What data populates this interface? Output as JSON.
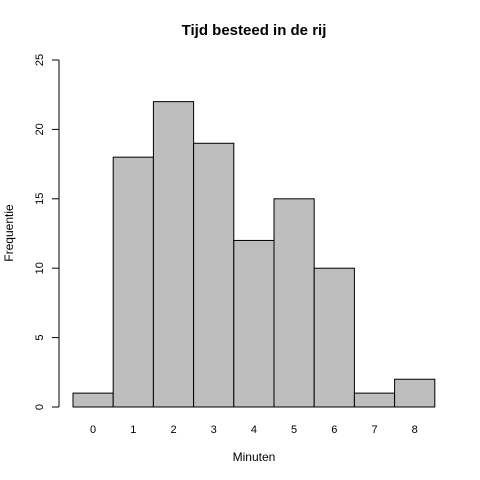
{
  "chart_data": {
    "type": "bar",
    "title": "Tijd besteed in de rij",
    "xlabel": "Minuten",
    "ylabel": "Frequentie",
    "categories": [
      "0",
      "1",
      "2",
      "3",
      "4",
      "5",
      "6",
      "7",
      "8"
    ],
    "values": [
      1,
      18,
      22,
      19,
      12,
      15,
      10,
      1,
      2
    ],
    "ylim": [
      0,
      25
    ],
    "yticks": [
      0,
      5,
      10,
      15,
      20,
      25
    ],
    "grid": false,
    "bar_color": "#bebebe",
    "edge_color": "#000000"
  }
}
